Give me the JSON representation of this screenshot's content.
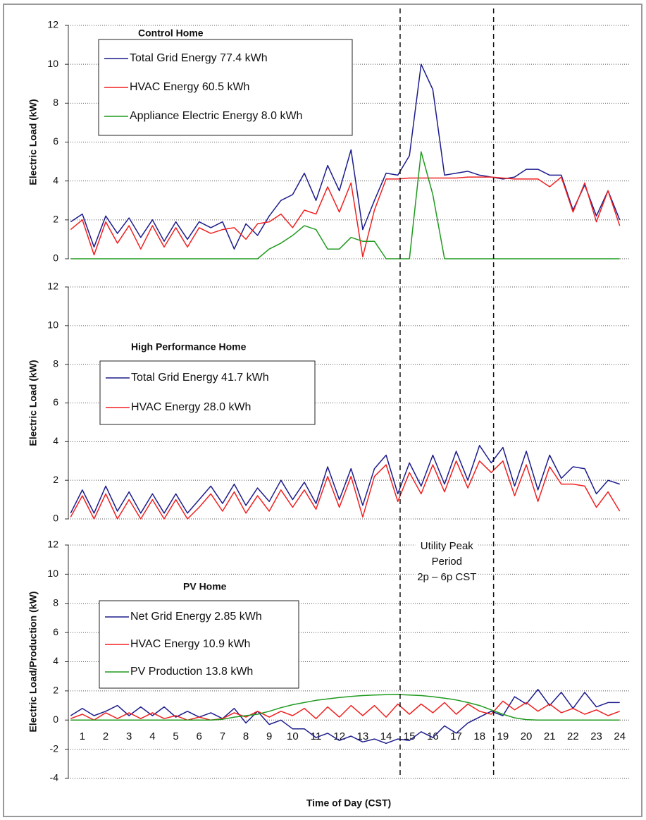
{
  "chart_data": [
    {
      "type": "line",
      "title": "Control Home",
      "ylabel": "Electric Load (kW)",
      "x": [
        0.5,
        1,
        1.5,
        2,
        2.5,
        3,
        3.5,
        4,
        4.5,
        5,
        5.5,
        6,
        6.5,
        7,
        7.5,
        8,
        8.5,
        9,
        9.5,
        10,
        10.5,
        11,
        11.5,
        12,
        12.5,
        13,
        13.5,
        14,
        14.5,
        15,
        15.5,
        16,
        16.5,
        17,
        17.5,
        18,
        18.5,
        19,
        19.5,
        20,
        20.5,
        21,
        21.5,
        22,
        22.5,
        23,
        23.5,
        24
      ],
      "xlim": [
        0.4,
        24.4
      ],
      "ylim": [
        0,
        12
      ],
      "yticks": [
        0,
        2,
        4,
        6,
        8,
        10,
        12
      ],
      "grid": true,
      "series": [
        {
          "name": "Total Grid Energy 77.4 kWh",
          "color": "#1c1c8c",
          "values": [
            1.9,
            2.3,
            0.6,
            2.2,
            1.3,
            2.1,
            1.1,
            2.0,
            0.9,
            1.9,
            1.0,
            1.9,
            1.6,
            1.9,
            0.5,
            1.8,
            1.2,
            2.2,
            3.0,
            3.3,
            4.4,
            3.0,
            4.8,
            3.5,
            5.6,
            1.5,
            3.0,
            4.4,
            4.3,
            5.3,
            10.0,
            8.7,
            4.3,
            4.4,
            4.5,
            4.3,
            4.2,
            4.1,
            4.2,
            4.6,
            4.6,
            4.3,
            4.3,
            2.5,
            3.8,
            2.2,
            3.5,
            2.0
          ]
        },
        {
          "name": "HVAC Energy 60.5 kWh",
          "color": "#f02020",
          "values": [
            1.5,
            2.0,
            0.2,
            1.9,
            0.8,
            1.7,
            0.5,
            1.7,
            0.6,
            1.6,
            0.6,
            1.6,
            1.3,
            1.5,
            1.6,
            1.0,
            1.8,
            1.9,
            2.3,
            1.6,
            2.5,
            2.3,
            3.7,
            2.4,
            3.9,
            0.1,
            2.5,
            4.1,
            4.1,
            4.15,
            4.15,
            4.15,
            4.15,
            4.15,
            4.2,
            4.2,
            4.2,
            4.15,
            4.1,
            4.1,
            4.1,
            3.7,
            4.2,
            2.4,
            3.9,
            1.9,
            3.5,
            1.7
          ]
        },
        {
          "name": "Appliance Electric Energy 8.0 kWh",
          "color": "#1f9a1f",
          "values": [
            0,
            0,
            0,
            0,
            0,
            0,
            0,
            0,
            0,
            0,
            0,
            0,
            0,
            0,
            0,
            0,
            0,
            0.5,
            0.8,
            1.2,
            1.7,
            1.5,
            0.5,
            0.5,
            1.1,
            0.9,
            0.9,
            0,
            0,
            0,
            5.5,
            3.3,
            0,
            0,
            0,
            0,
            0,
            0,
            0,
            0,
            0,
            0,
            0,
            0,
            0,
            0,
            0,
            0
          ]
        }
      ]
    },
    {
      "type": "line",
      "title": "High Performance Home",
      "ylabel": "Electric Load (kW)",
      "x": [
        0.5,
        1,
        1.5,
        2,
        2.5,
        3,
        3.5,
        4,
        4.5,
        5,
        5.5,
        6,
        6.5,
        7,
        7.5,
        8,
        8.5,
        9,
        9.5,
        10,
        10.5,
        11,
        11.5,
        12,
        12.5,
        13,
        13.5,
        14,
        14.5,
        15,
        15.5,
        16,
        16.5,
        17,
        17.5,
        18,
        18.5,
        19,
        19.5,
        20,
        20.5,
        21,
        21.5,
        22,
        22.5,
        23,
        23.5,
        24
      ],
      "xlim": [
        0.4,
        24.4
      ],
      "ylim": [
        0,
        12
      ],
      "yticks": [
        0,
        2,
        4,
        6,
        8,
        10,
        12
      ],
      "grid": true,
      "series": [
        {
          "name": "Total Grid Energy 41.7 kWh",
          "color": "#1c1c8c",
          "values": [
            0.3,
            1.5,
            0.3,
            1.7,
            0.4,
            1.4,
            0.3,
            1.3,
            0.3,
            1.3,
            0.3,
            1.0,
            1.7,
            0.8,
            1.8,
            0.7,
            1.6,
            0.9,
            2.0,
            1.0,
            1.9,
            0.8,
            2.7,
            1.0,
            2.6,
            0.7,
            2.6,
            3.3,
            1.3,
            2.9,
            1.7,
            3.3,
            1.8,
            3.5,
            2.0,
            3.8,
            2.9,
            3.7,
            1.7,
            3.5,
            1.5,
            3.3,
            2.1,
            2.7,
            2.6,
            1.3,
            2.0,
            1.8
          ]
        },
        {
          "name": "HVAC Energy 28.0 kWh",
          "color": "#f02020",
          "values": [
            0.1,
            1.2,
            0,
            1.3,
            0,
            1.0,
            0,
            1.0,
            0,
            1.0,
            0,
            0.6,
            1.3,
            0.4,
            1.4,
            0.3,
            1.2,
            0.4,
            1.5,
            0.6,
            1.5,
            0.5,
            2.2,
            0.6,
            2.2,
            0.1,
            2.2,
            2.8,
            0.9,
            2.4,
            1.3,
            2.8,
            1.4,
            3.0,
            1.6,
            3.0,
            2.4,
            3.0,
            1.2,
            2.8,
            0.9,
            2.7,
            1.8,
            1.8,
            1.7,
            0.6,
            1.4,
            0.4
          ]
        }
      ]
    },
    {
      "type": "line",
      "title": "PV Home",
      "ylabel": "Electric Load/Production (kW)",
      "xlabel": "Time of Day (CST)",
      "x": [
        0.5,
        1,
        1.5,
        2,
        2.5,
        3,
        3.5,
        4,
        4.5,
        5,
        5.5,
        6,
        6.5,
        7,
        7.5,
        8,
        8.5,
        9,
        9.5,
        10,
        10.5,
        11,
        11.5,
        12,
        12.5,
        13,
        13.5,
        14,
        14.5,
        15,
        15.5,
        16,
        16.5,
        17,
        17.5,
        18,
        18.5,
        19,
        19.5,
        20,
        20.5,
        21,
        21.5,
        22,
        22.5,
        23,
        23.5,
        24
      ],
      "xlim": [
        0.4,
        24.4
      ],
      "xticks": [
        1,
        2,
        3,
        4,
        5,
        6,
        7,
        8,
        9,
        10,
        11,
        12,
        13,
        14,
        15,
        16,
        17,
        18,
        19,
        20,
        21,
        22,
        23,
        24
      ],
      "ylim": [
        -4,
        12
      ],
      "yticks": [
        -4,
        -2,
        0,
        2,
        4,
        6,
        8,
        10,
        12
      ],
      "grid": true,
      "annotation": [
        "Utility Peak",
        "Period",
        "2p – 6p CST"
      ],
      "peak_period": [
        14.6,
        18.6
      ],
      "series": [
        {
          "name": "Net Grid Energy 2.85 kWh",
          "color": "#1c1c8c",
          "values": [
            0.3,
            0.8,
            0.3,
            0.6,
            1.0,
            0.3,
            0.9,
            0.3,
            0.9,
            0.2,
            0.6,
            0.2,
            0.5,
            0.1,
            0.8,
            -0.2,
            0.6,
            -0.3,
            0.0,
            -0.6,
            -0.6,
            -1.2,
            -0.9,
            -1.4,
            -1.1,
            -1.5,
            -1.3,
            -1.6,
            -1.3,
            -1.4,
            -0.8,
            -1.2,
            -0.4,
            -0.9,
            -0.2,
            0.2,
            0.6,
            0.3,
            1.6,
            1.1,
            2.1,
            1.0,
            1.9,
            0.8,
            1.9,
            0.9,
            1.2,
            1.2
          ]
        },
        {
          "name": "HVAC Energy 10.9 kWh",
          "color": "#f02020",
          "values": [
            0.1,
            0.4,
            0,
            0.5,
            0.1,
            0.5,
            0.1,
            0.5,
            0.1,
            0.3,
            0,
            0.2,
            0,
            0.1,
            0.5,
            0.2,
            0.6,
            0.2,
            0.6,
            0.3,
            0.8,
            0.1,
            0.9,
            0.2,
            1.0,
            0.3,
            1.0,
            0.2,
            1.1,
            0.4,
            1.1,
            0.5,
            1.2,
            0.4,
            1.1,
            0.6,
            0.4,
            1.3,
            0.7,
            1.2,
            0.6,
            1.1,
            0.5,
            0.8,
            0.4,
            0.7,
            0.3,
            0.6
          ]
        },
        {
          "name": "PV Production 13.8 kWh",
          "color": "#1f9a1f",
          "values": [
            0,
            0,
            0,
            0,
            0,
            0,
            0,
            0,
            0,
            0,
            0,
            0,
            0,
            0.05,
            0.2,
            0.3,
            0.4,
            0.6,
            0.85,
            1.05,
            1.2,
            1.35,
            1.45,
            1.55,
            1.62,
            1.68,
            1.72,
            1.74,
            1.75,
            1.72,
            1.68,
            1.6,
            1.5,
            1.38,
            1.2,
            1.0,
            0.7,
            0.4,
            0.15,
            0.03,
            0,
            0,
            0,
            0,
            0,
            0,
            0,
            0
          ]
        }
      ]
    }
  ]
}
